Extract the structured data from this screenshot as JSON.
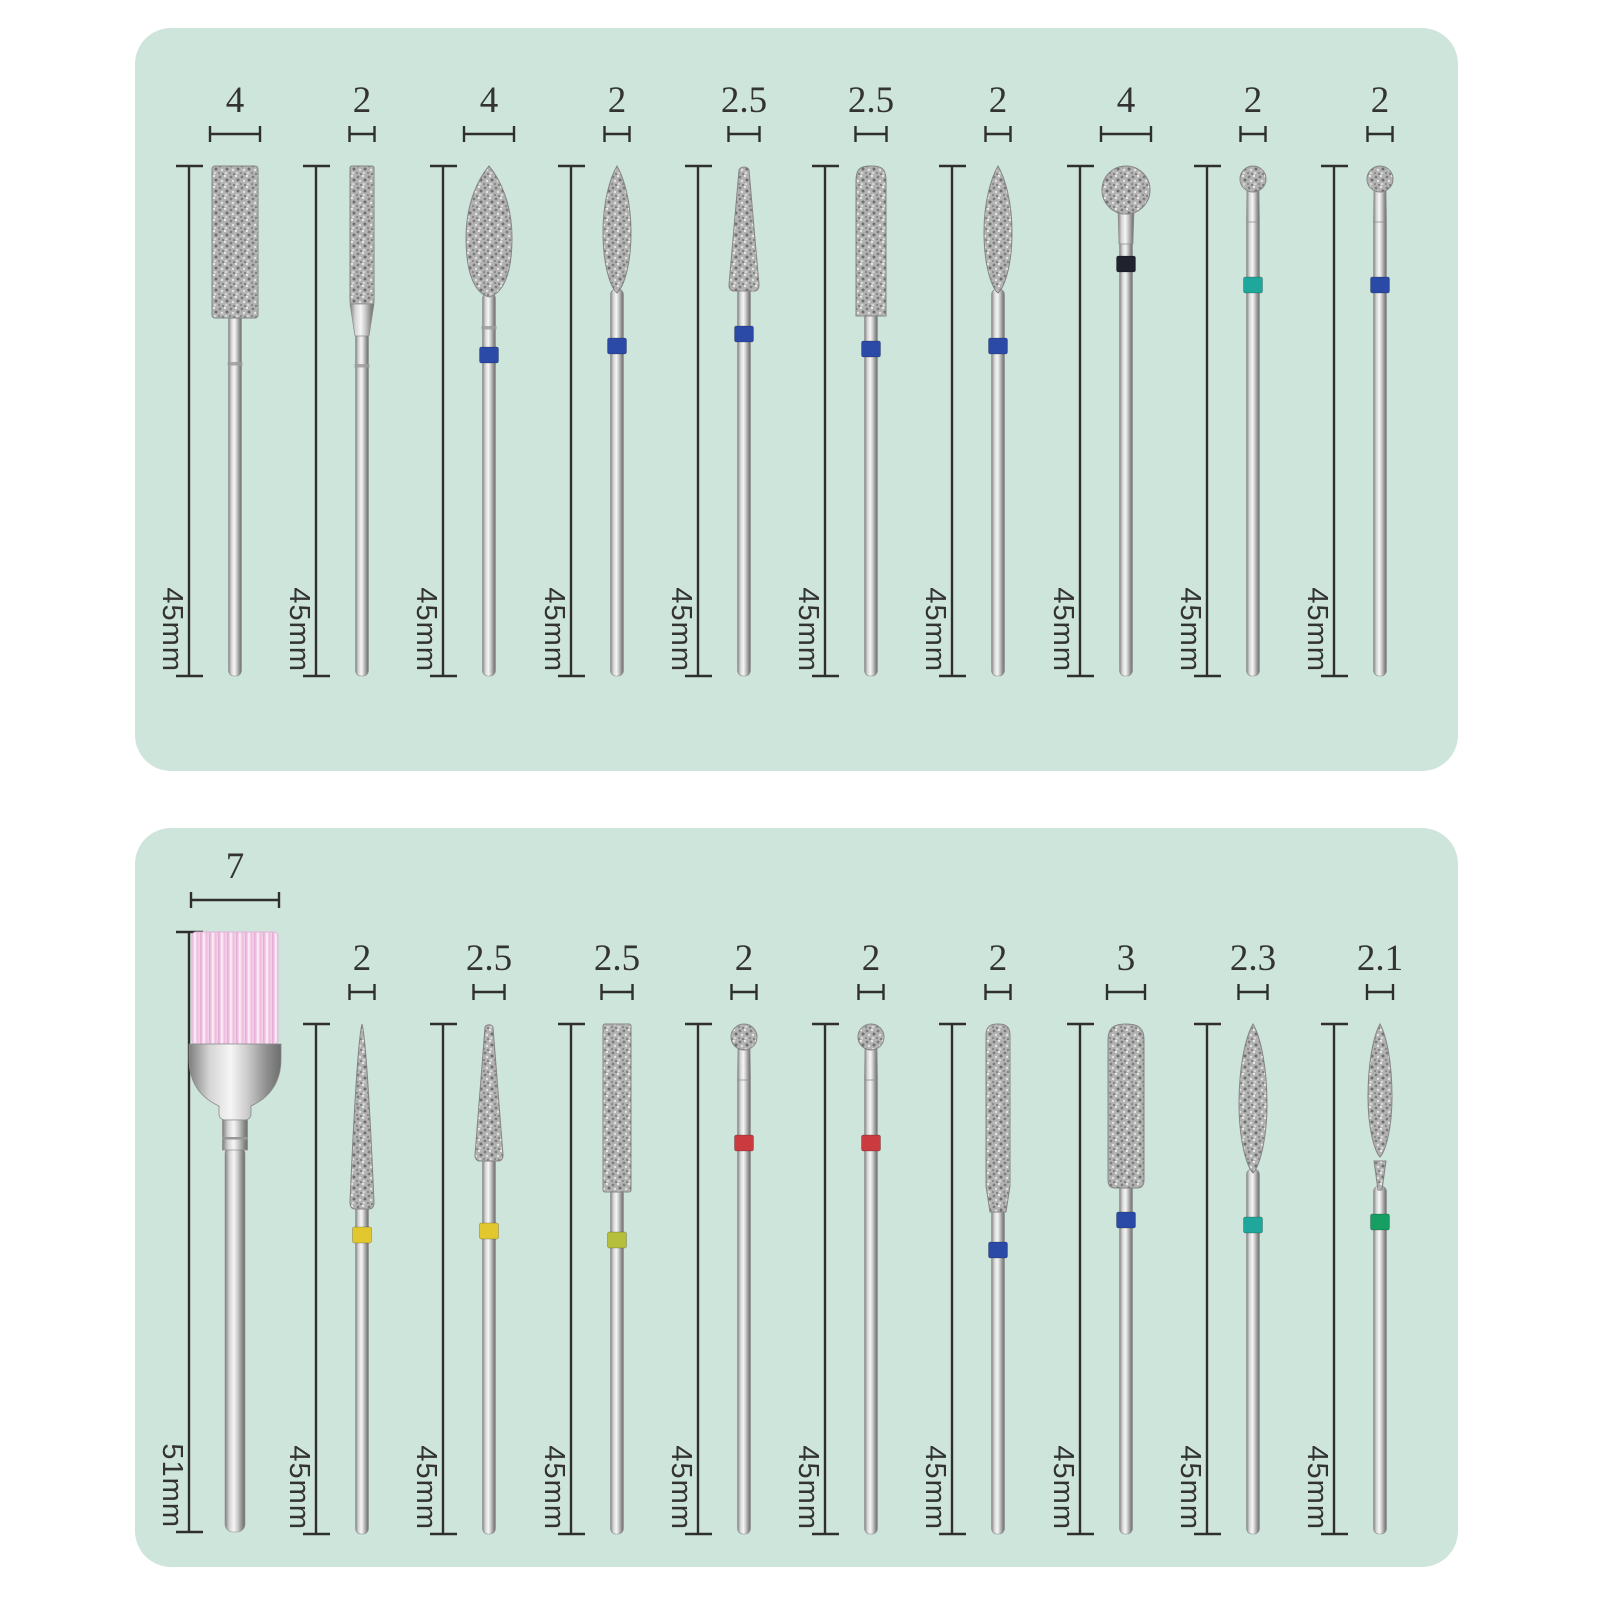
{
  "page": {
    "background_color": "#ffffff",
    "panel_color": "#cee5db",
    "annotation_line_color": "#2f2f2f",
    "annotation_text_color": "#333333",
    "brush_bristle_color": "#f3cfe7"
  },
  "band_colors": {
    "blue": "#2b4aa8",
    "black": "#20222e",
    "teal": "#20a79b",
    "green": "#179f63",
    "red": "#cb3a3e",
    "yellow": "#e2c82e",
    "yellow_green": "#b5bf3c"
  },
  "panels": [
    {
      "name": "top",
      "items": [
        {
          "width": "4",
          "length": "45mm",
          "shape": "cylinder-large",
          "band": null
        },
        {
          "width": "2",
          "length": "45mm",
          "shape": "cylinder-small",
          "band": null
        },
        {
          "width": "4",
          "length": "45mm",
          "shape": "bullet",
          "band": "blue"
        },
        {
          "width": "2",
          "length": "45mm",
          "shape": "flame",
          "band": "blue"
        },
        {
          "width": "2.5",
          "length": "45mm",
          "shape": "taper",
          "band": "blue"
        },
        {
          "width": "2.5",
          "length": "45mm",
          "shape": "barrel",
          "band": "blue"
        },
        {
          "width": "2",
          "length": "45mm",
          "shape": "flame",
          "band": "blue"
        },
        {
          "width": "4",
          "length": "45mm",
          "shape": "ball-large",
          "band": "black"
        },
        {
          "width": "2",
          "length": "45mm",
          "shape": "ball-small",
          "band": "teal"
        },
        {
          "width": "2",
          "length": "45mm",
          "shape": "ball-small",
          "band": "blue"
        }
      ]
    },
    {
      "name": "bottom",
      "items": [
        {
          "width": "7",
          "length": "51mm",
          "shape": "brush",
          "band": null,
          "tall": true
        },
        {
          "width": "2",
          "length": "45mm",
          "shape": "needle",
          "band": "yellow"
        },
        {
          "width": "2.5",
          "length": "45mm",
          "shape": "cone",
          "band": "yellow"
        },
        {
          "width": "2.5",
          "length": "45mm",
          "shape": "cylinder-mid",
          "band": "yellow_green"
        },
        {
          "width": "2",
          "length": "45mm",
          "shape": "ball-small",
          "band": "red"
        },
        {
          "width": "2",
          "length": "45mm",
          "shape": "ball-small",
          "band": "red"
        },
        {
          "width": "2",
          "length": "45mm",
          "shape": "roundcyl",
          "band": "blue"
        },
        {
          "width": "3",
          "length": "45mm",
          "shape": "barrel3",
          "band": "blue"
        },
        {
          "width": "2.3",
          "length": "45mm",
          "shape": "flame-small",
          "band": "teal"
        },
        {
          "width": "2.1",
          "length": "45mm",
          "shape": "flame-tiny",
          "band": "green"
        }
      ]
    }
  ]
}
